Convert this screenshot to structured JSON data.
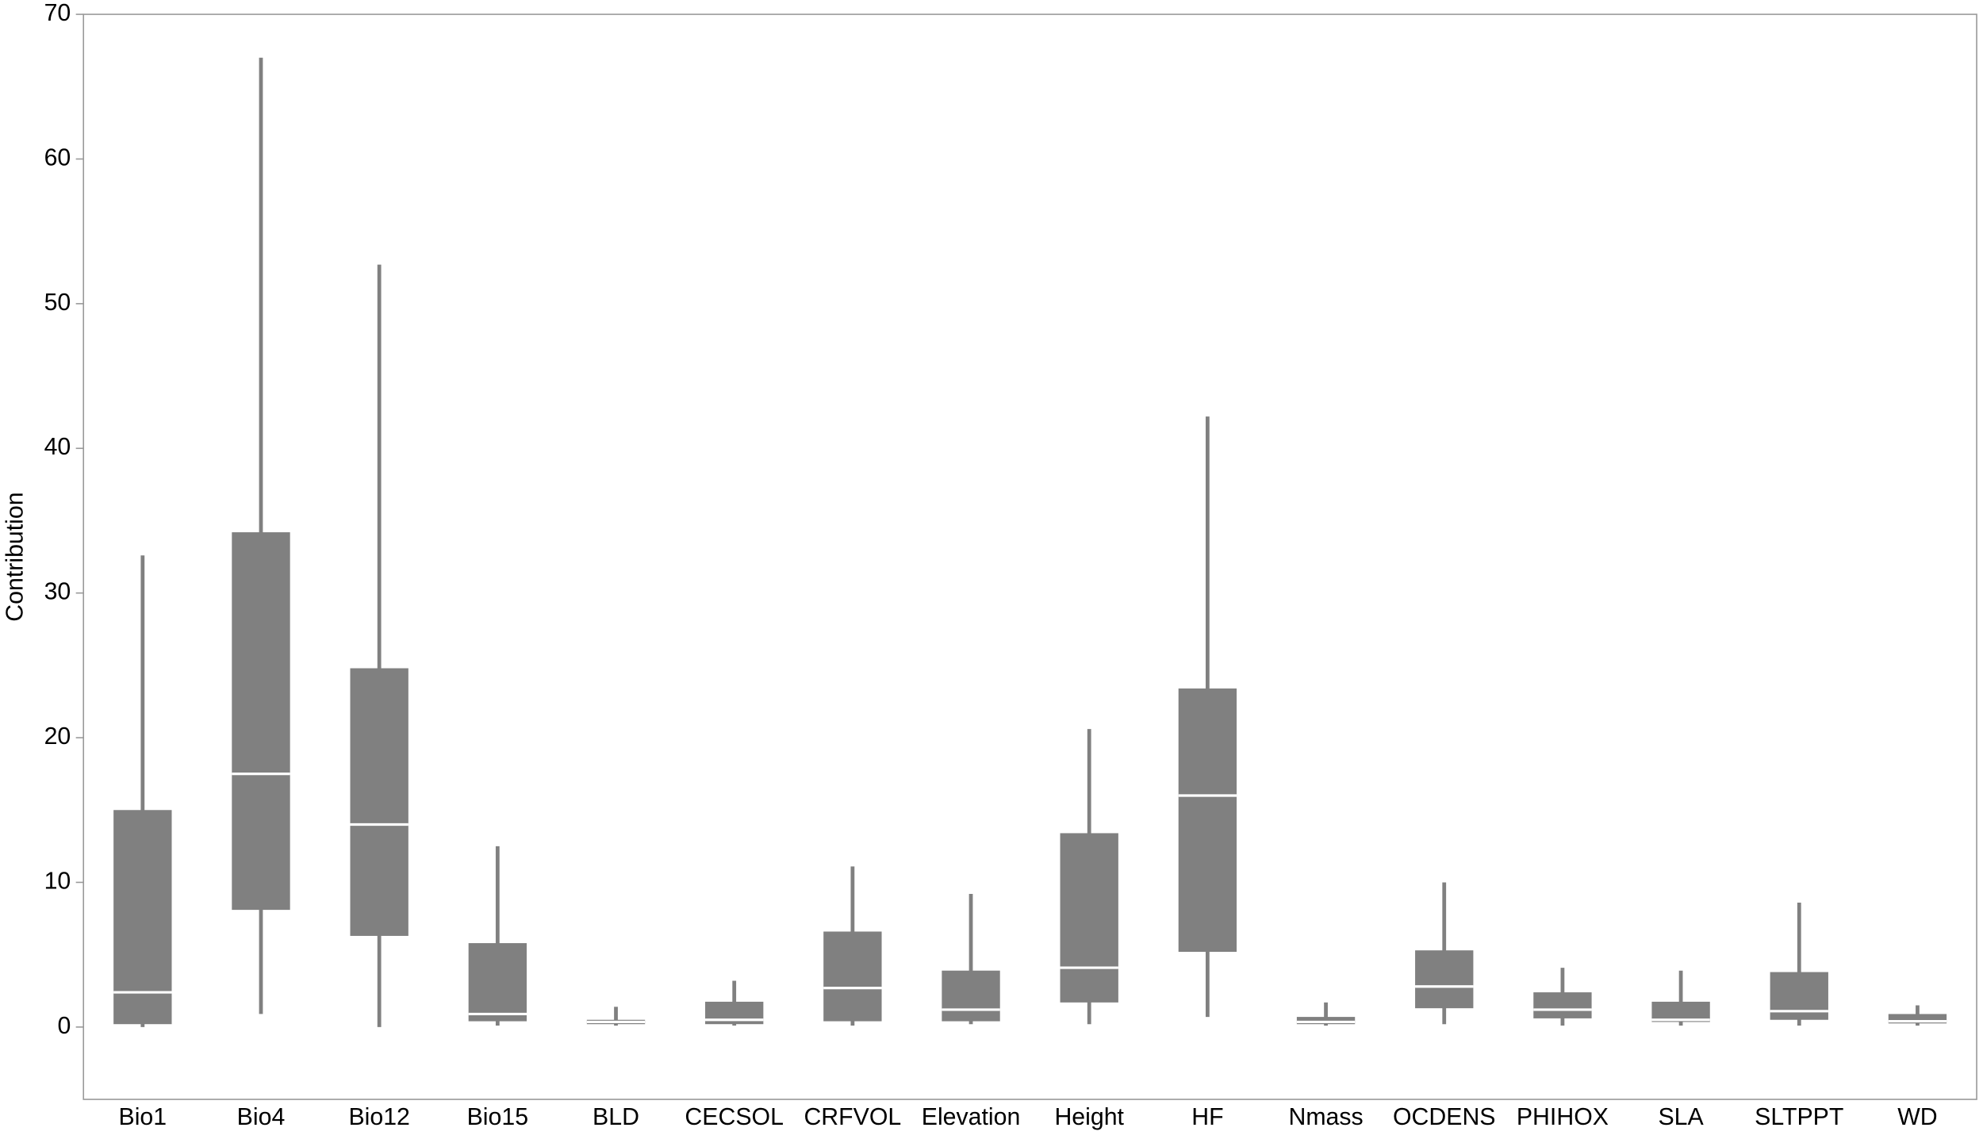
{
  "chart_data": {
    "type": "box",
    "y_label": "Contribution",
    "categories": [
      "Bio1",
      "Bio4",
      "Bio12",
      "Bio15",
      "BLD",
      "CECSOL",
      "CRFVOL",
      "Elevation",
      "Height",
      "HF",
      "Nmass",
      "OCDENS",
      "PHIHOX",
      "SLA",
      "SLTPPT",
      "WD"
    ],
    "min": [
      0.0,
      0.9,
      0.0,
      0.1,
      0.1,
      0.1,
      0.1,
      0.2,
      0.2,
      0.7,
      0.1,
      0.2,
      0.1,
      0.1,
      0.1,
      0.1
    ],
    "q1": [
      0.2,
      8.1,
      6.3,
      0.4,
      0.2,
      0.2,
      0.4,
      0.4,
      1.7,
      5.2,
      0.2,
      1.3,
      0.6,
      0.35,
      0.5,
      0.25
    ],
    "median": [
      2.4,
      17.5,
      14.0,
      0.9,
      0.35,
      0.5,
      2.7,
      1.2,
      4.1,
      16.0,
      0.35,
      2.8,
      1.2,
      0.5,
      1.1,
      0.4
    ],
    "q3": [
      15.0,
      34.2,
      24.8,
      5.8,
      0.5,
      1.75,
      6.6,
      3.9,
      13.4,
      23.4,
      0.7,
      5.3,
      2.4,
      1.75,
      3.8,
      0.9
    ],
    "max": [
      32.6,
      67.0,
      52.7,
      12.5,
      1.4,
      3.2,
      11.1,
      9.2,
      20.6,
      42.2,
      1.7,
      10.0,
      4.1,
      3.9,
      8.6,
      1.5
    ],
    "color": "#808080",
    "median_color": "#ffffff",
    "ylim": [
      -5,
      70
    ],
    "yticks": [
      0,
      10,
      20,
      30,
      40,
      50,
      60,
      70
    ]
  }
}
